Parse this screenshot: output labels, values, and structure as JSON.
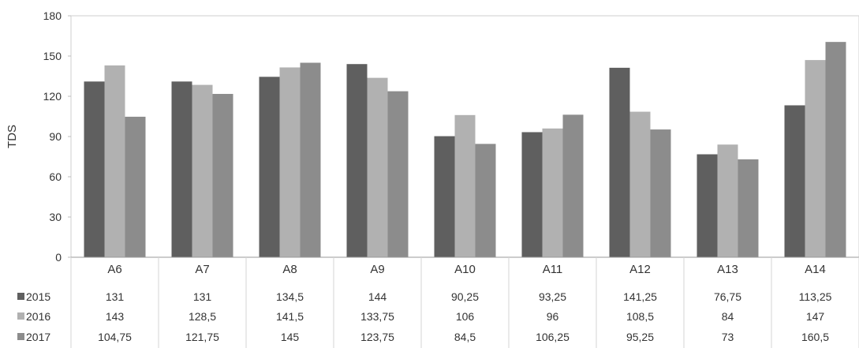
{
  "chart_data": {
    "type": "bar",
    "title": "",
    "xlabel": "",
    "ylabel": "TDS",
    "ylim": [
      0,
      180
    ],
    "yticks": [
      "0",
      "30",
      "60",
      "90",
      "120",
      "150",
      "180"
    ],
    "grid": false,
    "legend": "data-table-left",
    "categories": [
      "A6",
      "A7",
      "A8",
      "A9",
      "A10",
      "A11",
      "A12",
      "A13",
      "A14"
    ],
    "series": [
      {
        "name": "2015",
        "color": "#5f5f5f",
        "values": [
          131,
          131,
          134.5,
          144,
          90.25,
          93.25,
          141.25,
          76.75,
          113.25
        ],
        "labels": [
          "131",
          "131",
          "134,5",
          "144",
          "90,25",
          "93,25",
          "141,25",
          "76,75",
          "113,25"
        ]
      },
      {
        "name": "2016",
        "color": "#b1b1b1",
        "values": [
          143,
          128.5,
          141.5,
          133.75,
          106,
          96,
          108.5,
          84,
          147
        ],
        "labels": [
          "143",
          "128,5",
          "141,5",
          "133,75",
          "106",
          "96",
          "108,5",
          "84",
          "147"
        ]
      },
      {
        "name": "2017",
        "color": "#8c8c8c",
        "values": [
          104.75,
          121.75,
          145,
          123.75,
          84.5,
          106.25,
          95.25,
          73,
          160.5
        ],
        "labels": [
          "104,75",
          "121,75",
          "145",
          "123,75",
          "84,5",
          "106,25",
          "95,25",
          "73",
          "160,5"
        ]
      }
    ]
  }
}
